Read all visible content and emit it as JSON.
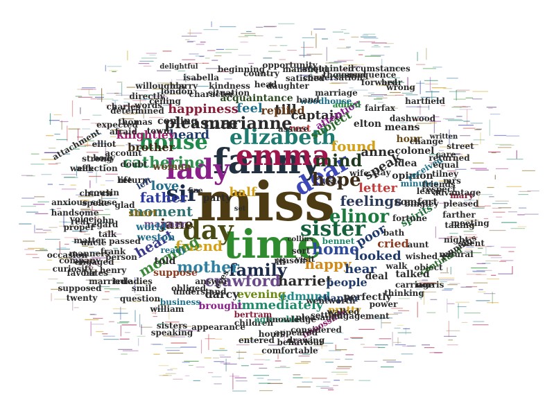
{
  "words": [
    {
      "text": "miss",
      "color": "#4d3b14"
    },
    {
      "text": "time",
      "color": "#2e8b2e"
    },
    {
      "text": "fanny",
      "color": "#22313f"
    },
    {
      "text": "emma",
      "color": "#a0154b"
    },
    {
      "text": "lady",
      "color": "#8a1f8a"
    },
    {
      "text": "dear",
      "color": "#3c47b8"
    },
    {
      "text": "sir",
      "color": "#1c2b4a"
    },
    {
      "text": "day",
      "color": "#4a4a14"
    },
    {
      "text": "elizabeth",
      "color": "#1f7a6f"
    },
    {
      "text": "house",
      "color": "#1f8a4a"
    },
    {
      "text": "sister",
      "color": "#14603a"
    },
    {
      "text": "elinor",
      "color": "#1a7a3e"
    },
    {
      "text": "family",
      "color": "#1c2b4a"
    },
    {
      "text": "mother",
      "color": "#2e7fa0"
    },
    {
      "text": "marianne",
      "color": "#2a2a2a"
    },
    {
      "text": "hope",
      "color": "#3b2a14"
    },
    {
      "text": "mind",
      "color": "#1f3a1f"
    },
    {
      "text": "catherine",
      "color": "#2f8f4f"
    },
    {
      "text": "father",
      "color": "#2c3aa0"
    },
    {
      "text": "friend",
      "color": "#d4a017"
    },
    {
      "text": "home",
      "color": "#2e4a9c"
    },
    {
      "text": "feelings",
      "color": "#2c3a5a"
    },
    {
      "text": "happy",
      "color": "#d18a1a"
    },
    {
      "text": "heart",
      "color": "#3a3a8a"
    },
    {
      "text": "morning",
      "color": "#3a8a3a"
    },
    {
      "text": "pleasure",
      "color": "#2a2a2a"
    },
    {
      "text": "crawford",
      "color": "#6a4a8a"
    },
    {
      "text": "harriet",
      "color": "#2c2c2c"
    },
    {
      "text": "jane",
      "color": "#3b2a14"
    },
    {
      "text": "moment",
      "color": "#2e6f6f"
    },
    {
      "text": "love",
      "color": "#1f6f8a"
    },
    {
      "text": "half",
      "color": "#d4a017"
    },
    {
      "text": "heard",
      "color": "#1f3a6a"
    },
    {
      "text": "found",
      "color": "#d4a017"
    },
    {
      "text": "letter",
      "color": "#c43c3c"
    },
    {
      "text": "till",
      "color": "#2c2c2c"
    },
    {
      "text": "feel",
      "color": "#1f6f8a"
    },
    {
      "text": "replied",
      "color": "#6a3a14"
    },
    {
      "text": "captain",
      "color": "#2c2c2c"
    },
    {
      "text": "happiness",
      "color": "#8a1f3a"
    },
    {
      "text": "brother",
      "color": "#3b2a14"
    },
    {
      "text": "knightley",
      "color": "#a01f6a"
    },
    {
      "text": "speak",
      "color": "#2c2c2c"
    },
    {
      "text": "anne",
      "color": "#2c2c2c"
    },
    {
      "text": "poor",
      "color": "#1f3a6a"
    },
    {
      "text": "looked",
      "color": "#1f3a6a"
    },
    {
      "text": "hear",
      "color": "#1f3a6a"
    },
    {
      "text": "cried",
      "color": "#8a3a1f"
    },
    {
      "text": "immediately",
      "color": "#1f8a6a"
    },
    {
      "text": "evening",
      "color": "#6a8a14"
    },
    {
      "text": "people",
      "color": "#1f3a6a"
    },
    {
      "text": "darcy",
      "color": "#2c2c2c"
    },
    {
      "text": "edmund",
      "color": "#1f8a8a"
    },
    {
      "text": "weston",
      "color": "#1f6f8a"
    },
    {
      "text": "manner",
      "color": "#6a4a8a"
    },
    {
      "text": "subject",
      "color": "#2c6a2c"
    },
    {
      "text": "party",
      "color": "#2c2c2c"
    },
    {
      "text": "told",
      "color": "#2c2c2c"
    },
    {
      "text": "world",
      "color": "#1f6f8a"
    },
    {
      "text": "short",
      "color": "#8a6a14"
    },
    {
      "text": "woman",
      "color": "#6a4a2c"
    },
    {
      "text": "suppose",
      "color": "#8a3a1f"
    },
    {
      "text": "brought",
      "color": "#8a1f8a"
    },
    {
      "text": "chapter",
      "color": "#1f3a6a"
    },
    {
      "text": "pretty",
      "color": "#d4a017"
    },
    {
      "text": "perfectly",
      "color": "#2c2c2c"
    },
    {
      "text": "deal",
      "color": "#2c2c2c"
    },
    {
      "text": "talked",
      "color": "#2c2c2c"
    },
    {
      "text": "opinion",
      "color": "#2c2c2c"
    },
    {
      "text": "spirits",
      "color": "#1f6f3a"
    },
    {
      "text": "comfort",
      "color": "#2c2c2c"
    },
    {
      "text": "hour",
      "color": "#6a4a14"
    },
    {
      "text": "colonel",
      "color": "#2c2c2c"
    },
    {
      "text": "idea",
      "color": "#2c2c2c"
    },
    {
      "text": "elton",
      "color": "#2c2c2c"
    },
    {
      "text": "means",
      "color": "#2c2c2c"
    },
    {
      "text": "attention",
      "color": "#8a1f8a"
    },
    {
      "text": "added",
      "color": "#1f8a3a"
    },
    {
      "text": "fairfax",
      "color": "#2c2c2c"
    },
    {
      "text": "woodhouse",
      "color": "#1f6f8a"
    },
    {
      "text": "acquaintance",
      "color": "#2c4a1f"
    },
    {
      "text": "coming",
      "color": "#2c2c2c"
    },
    {
      "text": "thomas",
      "color": "#2c2c2c"
    },
    {
      "text": "afraid",
      "color": "#2c2c2c"
    },
    {
      "text": "town",
      "color": "#2c2c2c"
    },
    {
      "text": "return",
      "color": "#2c2c2c"
    },
    {
      "text": "life",
      "color": "#2c2c2c"
    },
    {
      "text": "doubt",
      "color": "#2c2c2c"
    },
    {
      "text": "glad",
      "color": "#2c2c2c"
    },
    {
      "text": "passed",
      "color": "#2c2c2c"
    },
    {
      "text": "answer",
      "color": "#2c2c2c"
    },
    {
      "text": "ready",
      "color": "#1f6f8a"
    },
    {
      "text": "obliged",
      "color": "#2c2c2c"
    },
    {
      "text": "person",
      "color": "#2c2c2c"
    },
    {
      "text": "john",
      "color": "#2c2c2c"
    },
    {
      "text": "left",
      "color": "#1f3a6a"
    },
    {
      "text": "bennet",
      "color": "#1f8a6a"
    },
    {
      "text": "reason",
      "color": "#2c2c2c"
    },
    {
      "text": "walk",
      "color": "#2c2c2c"
    },
    {
      "text": "object",
      "color": "#2c2c2c"
    },
    {
      "text": "wished",
      "color": "#2c2c2c"
    },
    {
      "text": "aunt",
      "color": "#2c2c2c"
    },
    {
      "text": "bath",
      "color": "#2c2c2c"
    },
    {
      "text": "bingley",
      "color": "#2c2c2c"
    },
    {
      "text": "leave",
      "color": "#2c2c2c"
    },
    {
      "text": "minutes",
      "color": "#1f6f8a"
    },
    {
      "text": "received",
      "color": "#1f6f8a"
    },
    {
      "text": "mary",
      "color": "#8a1f3a"
    },
    {
      "text": "continued",
      "color": "#2c6a2c"
    },
    {
      "text": "natural",
      "color": "#2c2c2c"
    },
    {
      "text": "business",
      "color": "#1f6f8a"
    },
    {
      "text": "understand",
      "color": "#2c2c2c"
    },
    {
      "text": "children",
      "color": "#2c2c2c"
    },
    {
      "text": "agreeable",
      "color": "#1f8a6a"
    },
    {
      "text": "impossible",
      "color": "#8a1f6a"
    },
    {
      "text": "walked",
      "color": "#2c2c2c"
    },
    {
      "text": "engagement",
      "color": "#2c2c2c"
    },
    {
      "text": "thinking",
      "color": "#2c2c2c"
    },
    {
      "text": "power",
      "color": "#2c2c2c"
    },
    {
      "text": "bertram",
      "color": "#8a1f3a"
    },
    {
      "text": "settled",
      "color": "#2c2c2c"
    },
    {
      "text": "hours",
      "color": "#2c2c2c"
    },
    {
      "text": "appeared",
      "color": "#2c2c2c"
    },
    {
      "text": "behaviour",
      "color": "#2c2c2c"
    },
    {
      "text": "true",
      "color": "#2c2c2c"
    },
    {
      "text": "ladies",
      "color": "#2c2c2c"
    },
    {
      "text": "henry",
      "color": "#2c2c2c"
    },
    {
      "text": "frank",
      "color": "#2c2c2c"
    },
    {
      "text": "eyes",
      "color": "#2c2c2c"
    },
    {
      "text": "rest",
      "color": "#c43c3c"
    },
    {
      "text": "ill",
      "color": "#2c2c2c"
    },
    {
      "text": "visit",
      "color": "#2c2c2c"
    },
    {
      "text": "fine",
      "color": "#2c2c2c"
    },
    {
      "text": "set",
      "color": "#2c2c2c"
    },
    {
      "text": "sort",
      "color": "#2c2c2c"
    },
    {
      "text": "determined",
      "color": "#2c2c2c"
    },
    {
      "text": "expected",
      "color": "#2c2c2c"
    },
    {
      "text": "account",
      "color": "#2c2c2c"
    },
    {
      "text": "affection",
      "color": "#2c2c2c"
    },
    {
      "text": "body",
      "color": "#2c2c2c"
    },
    {
      "text": "elliot",
      "color": "#2c2c2c"
    },
    {
      "text": "week",
      "color": "#2c2c2c"
    },
    {
      "text": "strong",
      "color": "#2c2c2c"
    },
    {
      "text": "spoke",
      "color": "#2c2c2c"
    },
    {
      "text": "church",
      "color": "#2c2c2c"
    },
    {
      "text": "uncle",
      "color": "#2c2c2c"
    },
    {
      "text": "talk",
      "color": "#2c2c2c"
    },
    {
      "text": "regard",
      "color": "#2c2c2c"
    },
    {
      "text": "ceiling",
      "color": "#2c2c2c"
    },
    {
      "text": "character",
      "color": "#2c2c2c"
    },
    {
      "text": "kindness",
      "color": "#2c2c2c"
    },
    {
      "text": "head",
      "color": "#2c2c2c"
    },
    {
      "text": "daughter",
      "color": "#2c2c2c"
    },
    {
      "text": "satisfied",
      "color": "#2c2c2c"
    },
    {
      "text": "conversation",
      "color": "#2c2c2c"
    },
    {
      "text": "hand",
      "color": "#2c2c2c"
    },
    {
      "text": "marriage",
      "color": "#2c2c2c"
    },
    {
      "text": "change",
      "color": "#2c2c2c"
    },
    {
      "text": "carriage",
      "color": "#2c2c2c"
    },
    {
      "text": "equal",
      "color": "#2c2c2c"
    },
    {
      "text": "pleased",
      "color": "#2c2c2c"
    },
    {
      "text": "taking",
      "color": "#2c2c2c"
    },
    {
      "text": "tilney",
      "color": "#2c2c2c"
    },
    {
      "text": "mrs",
      "color": "#2c2c2c"
    },
    {
      "text": "dashwood",
      "color": "#2c2c2c"
    },
    {
      "text": "cousin",
      "color": "#2c2c2c"
    },
    {
      "text": "norris",
      "color": "#2c2c2c"
    },
    {
      "text": "jennings",
      "color": "#2c2c2c"
    },
    {
      "text": "care",
      "color": "#2c2c2c"
    },
    {
      "text": "street",
      "color": "#2c2c2c"
    },
    {
      "text": "returned",
      "color": "#2c2c2c"
    },
    {
      "text": "written",
      "color": "#2c2c2c"
    },
    {
      "text": "fortune",
      "color": "#2c2c2c"
    },
    {
      "text": "stay",
      "color": "#2c2c2c"
    },
    {
      "text": "wife",
      "color": "#2c2c2c"
    },
    {
      "text": "taste",
      "color": "#2c2c2c"
    },
    {
      "text": "smile",
      "color": "#2c2c2c"
    },
    {
      "text": "question",
      "color": "#2c2c2c"
    },
    {
      "text": "william",
      "color": "#2c2c2c"
    },
    {
      "text": "married",
      "color": "#2c2c2c"
    },
    {
      "text": "company",
      "color": "#2c2c2c"
    },
    {
      "text": "manners",
      "color": "#2c2c2c"
    },
    {
      "text": "matter",
      "color": "#2c2c2c"
    },
    {
      "text": "sense",
      "color": "#2c2c2c"
    },
    {
      "text": "attachment",
      "color": "#2c2c2c"
    },
    {
      "text": "handsome",
      "color": "#2c2c2c"
    },
    {
      "text": "voice",
      "color": "#2c2c2c"
    },
    {
      "text": "london",
      "color": "#2c2c2c"
    },
    {
      "text": "situation",
      "color": "#2c2c2c"
    },
    {
      "text": "marry",
      "color": "#2c2c2c"
    },
    {
      "text": "isabella",
      "color": "#2c2c2c"
    },
    {
      "text": "delightful",
      "color": "#2c2c2c"
    },
    {
      "text": "willoughby",
      "color": "#2c2c2c"
    },
    {
      "text": "charles",
      "color": "#2c2c2c"
    },
    {
      "text": "words",
      "color": "#2c2c2c"
    },
    {
      "text": "mansfield",
      "color": "#2c2c2c"
    },
    {
      "text": "country",
      "color": "#2c2c2c"
    },
    {
      "text": "opportunity",
      "color": "#2c2c2c"
    },
    {
      "text": "acquainted",
      "color": "#2c2c2c"
    },
    {
      "text": "thousand",
      "color": "#2c2c2c"
    },
    {
      "text": "consequence",
      "color": "#2c2c2c"
    },
    {
      "text": "circumstances",
      "color": "#2c2c2c"
    },
    {
      "text": "forward",
      "color": "#2c2c2c"
    },
    {
      "text": "wrong",
      "color": "#2c2c2c"
    },
    {
      "text": "hartfield",
      "color": "#2c2c2c"
    },
    {
      "text": "friends",
      "color": "#2c2c2c"
    },
    {
      "text": "respect",
      "color": "#2c2c2c"
    },
    {
      "text": "advantage",
      "color": "#2c2c2c"
    },
    {
      "text": "farther",
      "color": "#2c2c2c"
    },
    {
      "text": "meeting",
      "color": "#2c2c2c"
    },
    {
      "text": "night",
      "color": "#2c2c2c"
    },
    {
      "text": "silent",
      "color": "#2c2c2c"
    },
    {
      "text": "knowledge",
      "color": "#2c2c2c"
    },
    {
      "text": "wentworth",
      "color": "#2c2c2c"
    },
    {
      "text": "drawing",
      "color": "#2c2c2c"
    },
    {
      "text": "considered",
      "color": "#2c2c2c"
    },
    {
      "text": "pleasant",
      "color": "#2c2c2c"
    },
    {
      "text": "appearance",
      "color": "#2c2c2c"
    },
    {
      "text": "entered",
      "color": "#2c2c2c"
    },
    {
      "text": "comfortable",
      "color": "#2c2c2c"
    },
    {
      "text": "sisters",
      "color": "#2c2c2c"
    },
    {
      "text": "speaking",
      "color": "#2c2c2c"
    },
    {
      "text": "collins",
      "color": "#2c2c2c"
    },
    {
      "text": "anxious",
      "color": "#2c2c2c"
    },
    {
      "text": "occasion",
      "color": "#2c2c2c"
    },
    {
      "text": "curiosity",
      "color": "#2c2c2c"
    },
    {
      "text": "favour",
      "color": "#2c2c2c"
    },
    {
      "text": "supposed",
      "color": "#2c2c2c"
    },
    {
      "text": "twenty",
      "color": "#2c2c2c"
    },
    {
      "text": "bates",
      "color": "#2c2c2c"
    },
    {
      "text": "engaged",
      "color": "#2c2c2c"
    },
    {
      "text": "real",
      "color": "#2c2c2c"
    },
    {
      "text": "proper",
      "color": "#2c2c2c"
    },
    {
      "text": "directly",
      "color": "#2c2c2c"
    },
    {
      "text": "beginning",
      "color": "#2c2c2c"
    },
    {
      "text": "bear",
      "color": "#2c2c2c"
    },
    {
      "text": "assure",
      "color": "#2c2c2c"
    }
  ],
  "filler_colors": [
    "#c43c3c",
    "#2e7fa0",
    "#2e8b2e",
    "#d4a017",
    "#8a1f8a",
    "#6a4a14",
    "#1f6f8a",
    "#a0154b",
    "#3c47b8",
    "#1f8a6a",
    "#8a6a14",
    "#6a4a8a"
  ]
}
